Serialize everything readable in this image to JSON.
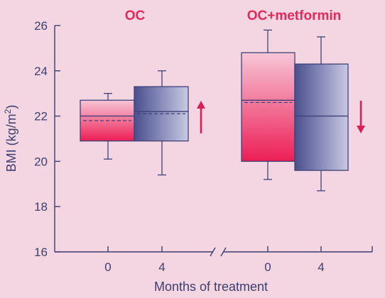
{
  "chart_data": {
    "type": "box",
    "ylabel": "BMI (kg/m",
    "ylabel_superscript": "2",
    "ylabel_suffix": ")",
    "xlabel": "Months of treatment",
    "ylim": [
      16,
      26
    ],
    "y_ticks": [
      "16",
      "18",
      "20",
      "22",
      "24",
      "26"
    ],
    "axis_break": true,
    "groups": [
      {
        "title": "OC",
        "trend_arrow": "up",
        "boxes": [
          {
            "x_label": "0",
            "fill": "pink",
            "whisker_low": 20.1,
            "q1": 20.9,
            "median": 22.0,
            "mean": 21.8,
            "q3": 22.7,
            "whisker_high": 23.0
          },
          {
            "x_label": "4",
            "fill": "blue",
            "whisker_low": 19.4,
            "q1": 20.9,
            "median": 22.2,
            "mean": 22.1,
            "q3": 23.3,
            "whisker_high": 24.0
          }
        ]
      },
      {
        "title": "OC+metformin",
        "trend_arrow": "down",
        "boxes": [
          {
            "x_label": "0",
            "fill": "pink",
            "whisker_low": 19.2,
            "q1": 20.0,
            "median": 22.7,
            "mean": 22.6,
            "q3": 24.8,
            "whisker_high": 25.8
          },
          {
            "x_label": "4",
            "fill": "blue",
            "whisker_low": 18.7,
            "q1": 19.6,
            "median": 22.0,
            "mean": null,
            "q3": 24.3,
            "whisker_high": 25.5
          }
        ]
      }
    ],
    "colors": {
      "background": "#f3d6e2",
      "axis": "#3c3f70",
      "box_outline": "#3f4278",
      "pink_light": "#f7c6d7",
      "pink_dark": "#ec1e55",
      "blue_light": "#c8c9e3",
      "blue_dark": "#4a4f8e",
      "arrow": "#d91e55",
      "title": "#e3285a"
    }
  }
}
